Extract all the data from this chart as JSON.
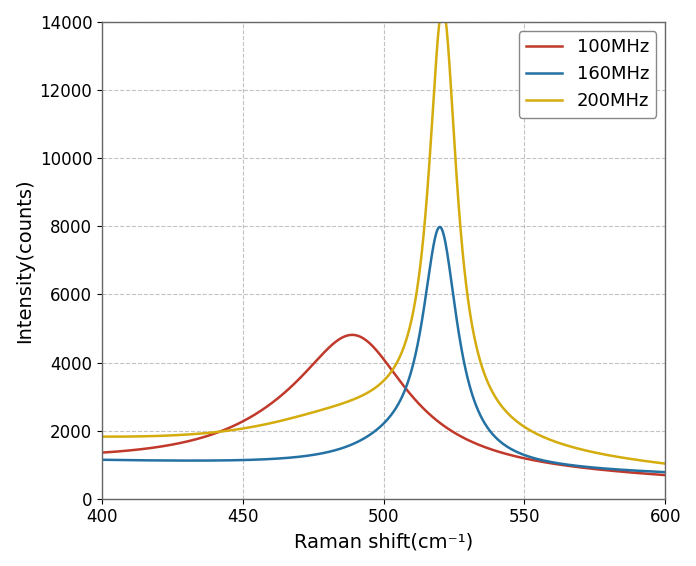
{
  "title": "",
  "xlabel": "Raman shift(cm⁻¹)",
  "ylabel": "Intensity(counts)",
  "xlim": [
    400,
    600
  ],
  "ylim": [
    0,
    14000
  ],
  "xticks": [
    400,
    450,
    500,
    550,
    600
  ],
  "yticks": [
    0,
    2000,
    4000,
    6000,
    8000,
    10000,
    12000,
    14000
  ],
  "series": [
    {
      "label": "100MHz",
      "color": "#c0392b"
    },
    {
      "label": "160MHz",
      "color": "#2471a3"
    },
    {
      "label": "200MHz",
      "color": "#d4ac0d"
    }
  ],
  "figsize": [
    6.96,
    5.66
  ],
  "dpi": 100,
  "grid_color": "#aaaaaa",
  "grid_style": "--",
  "grid_alpha": 0.7,
  "legend_fontsize": 13,
  "axis_fontsize": 14,
  "tick_fontsize": 12
}
